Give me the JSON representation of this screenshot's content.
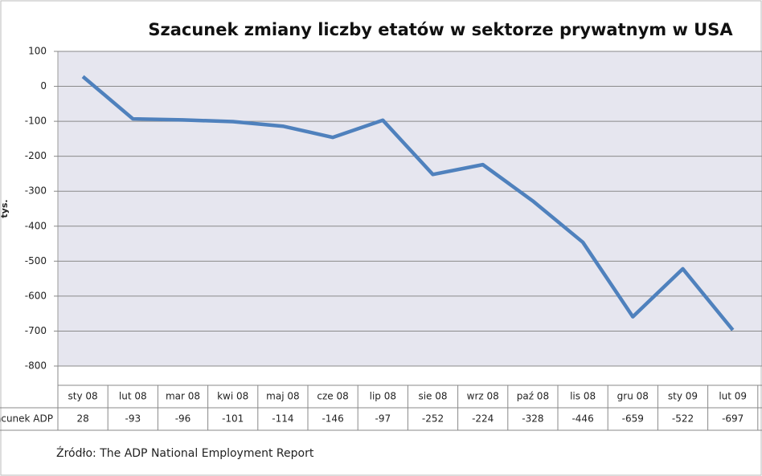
{
  "chart_data": {
    "type": "line",
    "title": "Szacunek zmiany liczby etatów w sektorze prywatnym w USA",
    "y_label": "tys.",
    "categories": [
      "sty 08",
      "lut 08",
      "mar 08",
      "kwi 08",
      "maj 08",
      "cze 08",
      "lip 08",
      "sie 08",
      "wrz 08",
      "paź 08",
      "lis 08",
      "gru 08",
      "sty 09",
      "lut 09"
    ],
    "series": [
      {
        "name": "Szacunek ADP",
        "color": "#4f81bd",
        "values": [
          28,
          -93,
          -96,
          -101,
          -114,
          -146,
          -97,
          -252,
          -224,
          -328,
          -446,
          -659,
          -522,
          -697
        ]
      }
    ],
    "ylim": [
      -800,
      100
    ],
    "yticks": [
      100,
      0,
      -100,
      -200,
      -300,
      -400,
      -500,
      -600,
      -700,
      -800
    ],
    "grid": true,
    "source": "Źródło:  The ADP National Employment Report"
  }
}
